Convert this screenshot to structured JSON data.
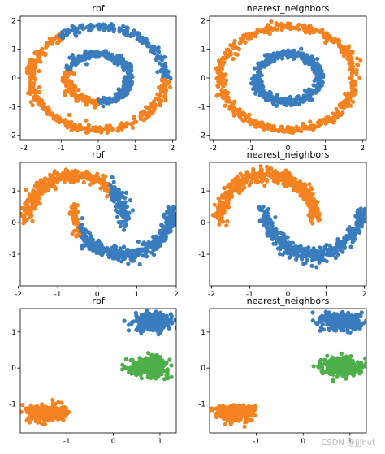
{
  "watermark": "CSDN @jjjhut",
  "colors": {
    "blue": "#3a7dbf",
    "orange": "#f58220",
    "green": "#4daf4a"
  },
  "chart_data": [
    {
      "id": "rbf-circles",
      "type": "scatter",
      "title": "rbf",
      "xlim": [
        -2.1,
        2.1
      ],
      "ylim": [
        -2.15,
        2.15
      ],
      "xticks": [
        -2,
        -1,
        0,
        1,
        2
      ],
      "yticks": [
        -2,
        -1,
        0,
        1,
        2
      ],
      "datasets": [
        {
          "shape": "ring",
          "r": 1.8,
          "noise": 0.07,
          "count": 500,
          "arc_colors": [
            {
              "from": -0.8,
              "to": 125,
              "color": "blue"
            }
          ],
          "default_color": "orange"
        },
        {
          "shape": "ring",
          "r": 0.85,
          "noise": 0.07,
          "count": 380,
          "arc_colors": [
            {
              "from": -90,
              "to": 90,
              "color": "blue"
            },
            {
              "from": 90,
              "to": 160,
              "color": "blue"
            }
          ],
          "default_color": "orange"
        }
      ]
    },
    {
      "id": "nn-circles",
      "type": "scatter",
      "title": "nearest_neighbors",
      "xlim": [
        -2.1,
        2.1
      ],
      "ylim": [
        -2.15,
        2.15
      ],
      "xticks": [
        -2,
        -1,
        0,
        1,
        2
      ],
      "yticks": [
        -2,
        -1,
        0,
        1,
        2
      ],
      "datasets": [
        {
          "shape": "ring",
          "r": 1.8,
          "noise": 0.07,
          "count": 500,
          "default_color": "orange"
        },
        {
          "shape": "ring",
          "r": 0.85,
          "noise": 0.07,
          "count": 380,
          "default_color": "blue"
        }
      ]
    },
    {
      "id": "rbf-moons",
      "type": "scatter",
      "title": "rbf",
      "xlim": [
        -1.95,
        2.0
      ],
      "ylim": [
        -2.0,
        1.9
      ],
      "xticks": [
        -2,
        -1,
        0,
        1,
        2
      ],
      "yticks": [
        -1,
        0,
        1
      ],
      "datasets": [
        {
          "shape": "upper-moon",
          "count": 420,
          "noise": 0.08,
          "split_x": 0.3,
          "left_color": "orange",
          "right_color": "blue"
        },
        {
          "shape": "lower-moon",
          "count": 420,
          "noise": 0.08,
          "split_x": -0.45,
          "left_color": "orange",
          "right_color": "blue"
        }
      ]
    },
    {
      "id": "nn-moons",
      "type": "scatter",
      "title": "nearest_neighbors",
      "xlim": [
        -2.05,
        2.05
      ],
      "ylim": [
        -2.0,
        1.9
      ],
      "xticks": [
        -2,
        -1,
        0,
        1,
        2
      ],
      "yticks": [
        -1,
        0,
        1
      ],
      "datasets": [
        {
          "shape": "upper-moon",
          "count": 420,
          "noise": 0.08,
          "default_color": "orange"
        },
        {
          "shape": "lower-moon",
          "count": 420,
          "noise": 0.08,
          "default_color": "blue"
        }
      ]
    },
    {
      "id": "rbf-blobs",
      "type": "scatter",
      "title": "rbf",
      "xlim": [
        -2.0,
        1.35
      ],
      "ylim": [
        -1.8,
        1.65
      ],
      "xticks": [
        -1,
        0,
        1
      ],
      "yticks": [
        -1,
        0,
        1
      ],
      "datasets": [
        {
          "shape": "blob",
          "cx": 0.85,
          "cy": 1.28,
          "sx": 0.2,
          "sy": 0.12,
          "count": 320,
          "default_color": "blue"
        },
        {
          "shape": "blob",
          "cx": 0.78,
          "cy": 0.05,
          "sx": 0.2,
          "sy": 0.12,
          "count": 320,
          "default_color": "green"
        },
        {
          "shape": "blob",
          "cx": -1.45,
          "cy": -1.25,
          "sx": 0.2,
          "sy": 0.11,
          "count": 320,
          "default_color": "orange"
        }
      ]
    },
    {
      "id": "nn-blobs",
      "type": "scatter",
      "title": "nearest_neighbors",
      "xlim": [
        -2.0,
        1.35
      ],
      "ylim": [
        -1.8,
        1.65
      ],
      "xticks": [
        -1,
        0,
        1
      ],
      "yticks": [
        -1,
        0,
        1
      ],
      "datasets": [
        {
          "shape": "blob",
          "cx": 0.85,
          "cy": 1.28,
          "sx": 0.2,
          "sy": 0.12,
          "count": 320,
          "default_color": "blue"
        },
        {
          "shape": "blob",
          "cx": 0.78,
          "cy": 0.05,
          "sx": 0.2,
          "sy": 0.12,
          "count": 320,
          "default_color": "green"
        },
        {
          "shape": "blob",
          "cx": -1.45,
          "cy": -1.25,
          "sx": 0.2,
          "sy": 0.11,
          "count": 320,
          "default_color": "orange"
        }
      ]
    }
  ]
}
